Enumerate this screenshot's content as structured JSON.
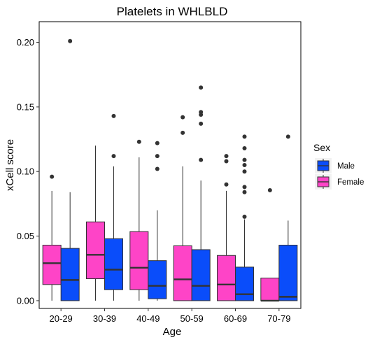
{
  "chart_data": {
    "type": "boxplot",
    "title": "Platelets in WHLBLD",
    "xlabel": "Age",
    "ylabel": "xCell score",
    "categories": [
      "20-29",
      "30-39",
      "40-49",
      "50-59",
      "60-69",
      "70-79"
    ],
    "ylim": [
      -0.006,
      0.216
    ],
    "yticks": [
      0.0,
      0.05,
      0.1,
      0.15,
      0.2
    ],
    "ytick_labels": [
      "0.00",
      "0.05",
      "0.10",
      "0.15",
      "0.20"
    ],
    "grid": false,
    "legend": {
      "title": "Sex",
      "position": "right",
      "entries": [
        {
          "name": "Male",
          "color": "#0a4dfa"
        },
        {
          "name": "Female",
          "color": "#fe44c7"
        }
      ]
    },
    "series": [
      {
        "name": "Female",
        "color": "#fe44c7",
        "boxes": [
          {
            "whisker_low": 0.0,
            "q1": 0.0125,
            "median": 0.029,
            "q3": 0.043,
            "whisker_high": 0.085,
            "outliers": [
              0.096
            ]
          },
          {
            "whisker_low": 0.0,
            "q1": 0.017,
            "median": 0.0355,
            "q3": 0.061,
            "whisker_high": 0.12,
            "outliers": []
          },
          {
            "whisker_low": 0.0,
            "q1": 0.0085,
            "median": 0.0255,
            "q3": 0.0535,
            "whisker_high": 0.111,
            "outliers": [
              0.123
            ]
          },
          {
            "whisker_low": 0.0,
            "q1": 0.0,
            "median": 0.0165,
            "q3": 0.0425,
            "whisker_high": 0.104,
            "outliers": [
              0.13,
              0.142
            ]
          },
          {
            "whisker_low": 0.0,
            "q1": 0.0,
            "median": 0.0125,
            "q3": 0.035,
            "whisker_high": 0.085,
            "outliers": [
              0.09,
              0.108,
              0.112
            ]
          },
          {
            "whisker_low": 0.0,
            "q1": 0.0,
            "median": 0.0,
            "q3": 0.0175,
            "whisker_high": 0.0175,
            "outliers": [
              0.0855
            ]
          }
        ]
      },
      {
        "name": "Male",
        "color": "#0a4dfa",
        "boxes": [
          {
            "whisker_low": 0.0,
            "q1": 0.0,
            "median": 0.016,
            "q3": 0.0405,
            "whisker_high": 0.084,
            "outliers": [
              0.201
            ]
          },
          {
            "whisker_low": 0.0,
            "q1": 0.0085,
            "median": 0.024,
            "q3": 0.048,
            "whisker_high": 0.104,
            "outliers": [
              0.112,
              0.143
            ]
          },
          {
            "whisker_low": 0.0,
            "q1": 0.0015,
            "median": 0.0115,
            "q3": 0.031,
            "whisker_high": 0.07,
            "outliers": [
              0.102,
              0.112,
              0.122
            ]
          },
          {
            "whisker_low": 0.0,
            "q1": 0.0,
            "median": 0.0115,
            "q3": 0.0395,
            "whisker_high": 0.093,
            "outliers": [
              0.109,
              0.137,
              0.144,
              0.146,
              0.165
            ]
          },
          {
            "whisker_low": 0.0,
            "q1": 0.0,
            "median": 0.005,
            "q3": 0.026,
            "whisker_high": 0.063,
            "outliers": [
              0.065,
              0.084,
              0.088,
              0.1,
              0.105,
              0.109,
              0.118,
              0.127
            ]
          },
          {
            "whisker_low": 0.0,
            "q1": 0.0,
            "median": 0.003,
            "q3": 0.043,
            "whisker_high": 0.062,
            "outliers": [
              0.127
            ]
          }
        ]
      }
    ]
  }
}
